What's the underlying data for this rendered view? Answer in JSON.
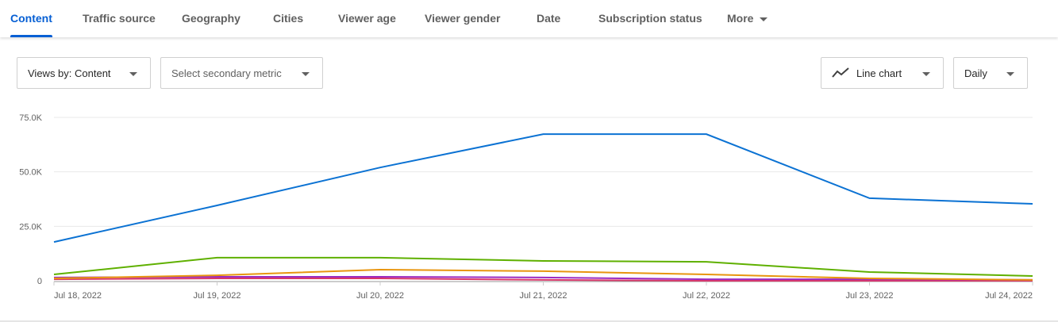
{
  "tabs": [
    {
      "label": "Content",
      "active": true
    },
    {
      "label": "Traffic source"
    },
    {
      "label": "Geography"
    },
    {
      "label": "Cities"
    },
    {
      "label": "Viewer age"
    },
    {
      "label": "Viewer gender"
    },
    {
      "label": "Date"
    },
    {
      "label": "Subscription status"
    },
    {
      "label": "More"
    }
  ],
  "controls": {
    "primary_metric": "Views by: Content",
    "secondary_metric": "Select secondary metric",
    "chart_type": "Line chart",
    "interval": "Daily"
  },
  "chart_data": {
    "type": "line",
    "x": [
      "Jul 18, 2022",
      "Jul 19, 2022",
      "Jul 20, 2022",
      "Jul 21, 2022",
      "Jul 22, 2022",
      "Jul 23, 2022",
      "Jul 24, 2022"
    ],
    "y_ticks": [
      "0",
      "25.0K",
      "50.0K",
      "75.0K"
    ],
    "ylim": [
      0,
      75000
    ],
    "grid": true,
    "series": [
      {
        "color": "#0b72d3",
        "values": [
          17800,
          34600,
          52000,
          67300,
          67300,
          37900,
          35300
        ]
      },
      {
        "color": "#5fb000",
        "values": [
          2900,
          10600,
          10600,
          9100,
          8700,
          4000,
          2200
        ]
      },
      {
        "color": "#e8950e",
        "values": [
          1100,
          2500,
          5100,
          4400,
          2900,
          1100,
          400
        ]
      },
      {
        "color": "#9c2bc0",
        "values": [
          1500,
          1800,
          1800,
          1500,
          700,
          700,
          400
        ]
      },
      {
        "color": "#d9386a",
        "values": [
          700,
          1100,
          1100,
          400,
          0,
          0,
          0
        ]
      }
    ]
  }
}
